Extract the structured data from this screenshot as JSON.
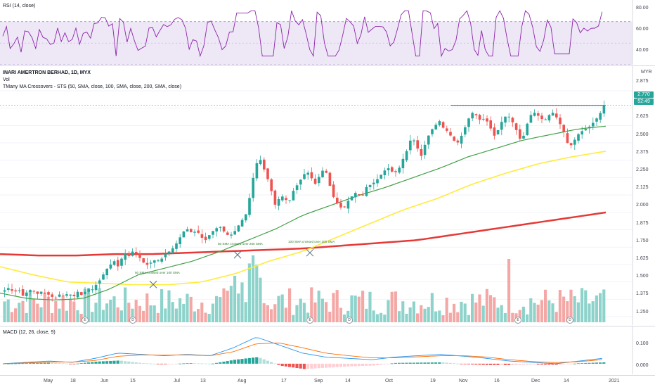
{
  "rsi": {
    "label": "RSI (14, close)",
    "levels": [
      "80.00",
      "60.00",
      "40.00"
    ]
  },
  "main": {
    "title": "INARI AMERTRON BERHAD, 1D, MYX",
    "volume_label": "Vol",
    "study_label": "TMany MA Crossovers - STS (50, SMA, close, 100, SMA, close, 200, SMA, close)",
    "currency": "MYR",
    "price_ticks": [
      "2.875",
      "2.750",
      "2.625",
      "2.500",
      "2.375",
      "2.250",
      "2.125",
      "2.000",
      "1.875",
      "1.750",
      "1.625",
      "1.500",
      "1.375",
      "1.250"
    ],
    "last_price": "2.770",
    "countdown": "52:49",
    "crossovers": [
      "50 SMA crossed over 100 SMA",
      "50 SMA crossed over 200 SMA",
      "100 SMA crossed over 200 SMA"
    ],
    "event_markers": [
      "E",
      "D",
      "E",
      "D",
      "E",
      "D"
    ]
  },
  "macd": {
    "label": "MACD (12, 26, close, 9)",
    "levels": [
      "0.100",
      "0.000"
    ]
  },
  "time_axis": [
    "May",
    "18",
    "Jun",
    "15",
    "Jul",
    "13",
    "Aug",
    "17",
    "Sep",
    "14",
    "Oct",
    "19",
    "Nov",
    "16",
    "Dec",
    "14",
    "2021"
  ],
  "colors": {
    "up": "#26a69a",
    "down": "#ef5350",
    "ma50": "#43a047",
    "ma100": "#ffeb3b",
    "ma200": "#e53935",
    "rsi": "#7e57c2",
    "macd": "#2196f3",
    "signal": "#ff6d00"
  },
  "chart_data": {
    "type": "candlestick",
    "title": "INARI AMERTRON BERHAD, 1D, MYX",
    "x_range": [
      "2020-04-24",
      "2021-01-04"
    ],
    "ylim": [
      1.22,
      2.9
    ],
    "price_path": [
      1.44,
      1.46,
      1.42,
      1.45,
      1.4,
      1.43,
      1.45,
      1.41,
      1.43,
      1.42,
      1.4,
      1.38,
      1.41,
      1.4,
      1.42,
      1.39,
      1.43,
      1.4,
      1.45,
      1.44,
      1.48,
      1.52,
      1.58,
      1.62,
      1.65,
      1.6,
      1.72,
      1.68,
      1.72,
      1.7,
      1.65,
      1.62,
      1.64,
      1.66,
      1.65,
      1.7,
      1.72,
      1.75,
      1.8,
      1.86,
      1.88,
      1.85,
      1.87,
      1.82,
      1.8,
      1.85,
      1.88,
      1.9,
      1.86,
      1.83,
      1.85,
      1.9,
      1.95,
      2.0,
      2.2,
      2.35,
      2.38,
      2.28,
      2.2,
      2.05,
      2.1,
      2.12,
      2.06,
      2.15,
      2.2,
      2.25,
      2.3,
      2.25,
      2.2,
      2.28,
      2.32,
      2.2,
      2.1,
      2.05,
      2.02,
      2.08,
      2.12,
      2.15,
      2.1,
      2.18,
      2.2,
      2.22,
      2.26,
      2.3,
      2.32,
      2.28,
      2.3,
      2.38,
      2.45,
      2.55,
      2.48,
      2.4,
      2.5,
      2.58,
      2.62,
      2.66,
      2.6,
      2.58,
      2.52,
      2.5,
      2.56,
      2.64,
      2.72,
      2.7,
      2.66,
      2.68,
      2.62,
      2.55,
      2.6,
      2.68,
      2.7,
      2.65,
      2.58,
      2.5,
      2.62,
      2.7,
      2.72,
      2.68,
      2.66,
      2.7,
      2.72,
      2.66,
      2.6,
      2.5,
      2.48,
      2.55,
      2.58,
      2.6,
      2.62,
      2.66,
      2.7,
      2.77
    ],
    "ma50": [
      1.42,
      1.38,
      1.37,
      1.38,
      1.45,
      1.55,
      1.6,
      1.65,
      1.72,
      1.8,
      1.88,
      1.98,
      2.05,
      2.12,
      2.18,
      2.25,
      2.32,
      2.4,
      2.46,
      2.52,
      2.56,
      2.6,
      2.62
    ],
    "ma100": [
      1.61,
      1.55,
      1.5,
      1.49,
      1.48,
      1.48,
      1.5,
      1.56,
      1.65,
      1.72,
      1.82,
      1.92,
      2.02,
      2.1,
      2.2,
      2.28,
      2.35,
      2.4,
      2.44
    ],
    "ma200": [
      1.7,
      1.69,
      1.69,
      1.7,
      1.7,
      1.71,
      1.72,
      1.73,
      1.74,
      1.76,
      1.78,
      1.8,
      1.84,
      1.88,
      1.92,
      1.96,
      2.0
    ],
    "series": [
      {
        "name": "RSI (14, close)",
        "ylim": [
          30,
          90
        ]
      },
      {
        "name": "MACD (12, 26, close, 9)",
        "ylim": [
          -0.04,
          0.14
        ]
      }
    ]
  }
}
